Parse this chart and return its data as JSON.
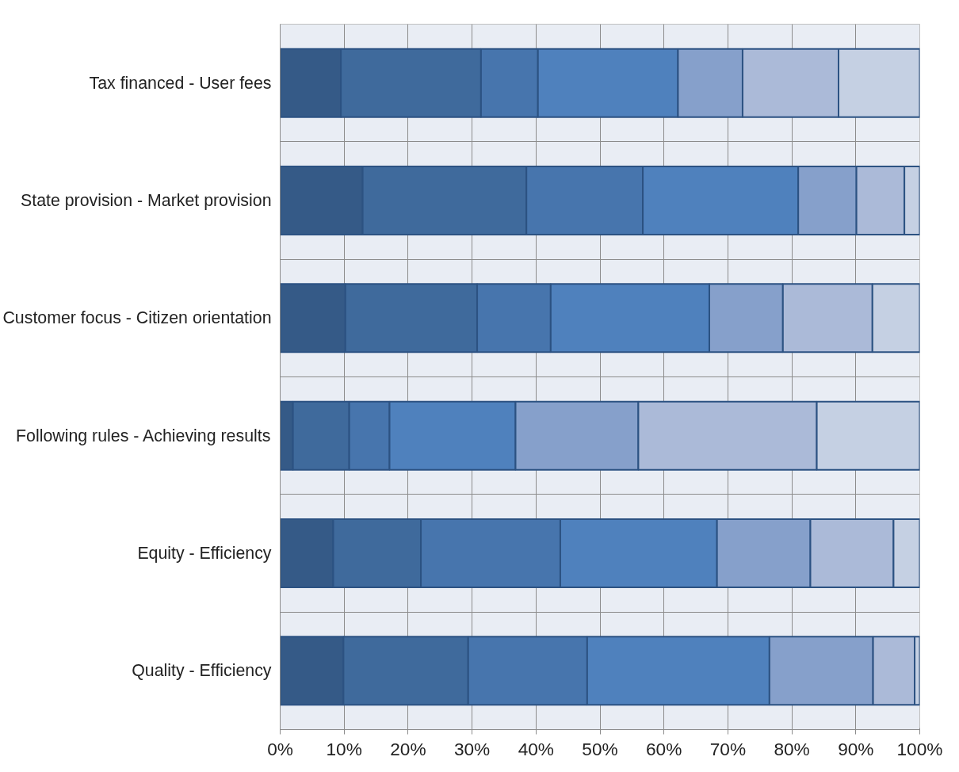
{
  "chart_data": {
    "type": "bar",
    "orientation": "horizontal",
    "stacked": true,
    "categories": [
      "Tax financed - User fees",
      "State provision - Market provision",
      "Customer focus - Citizen orientation",
      "Following rules - Achieving results",
      "Equity - Efficiency",
      "Quality - Efficiency"
    ],
    "series": [
      {
        "color": "#355a87",
        "values": [
          9.5,
          12.9,
          10.2,
          2.0,
          8.3,
          9.9
        ]
      },
      {
        "color": "#3f6a9c",
        "values": [
          21.9,
          25.6,
          20.6,
          8.8,
          13.7,
          19.5
        ]
      },
      {
        "color": "#4775ad",
        "values": [
          8.9,
          18.2,
          11.5,
          6.3,
          21.8,
          18.6
        ]
      },
      {
        "color": "#4f81bd",
        "values": [
          21.9,
          24.3,
          24.8,
          19.7,
          24.5,
          28.5
        ]
      },
      {
        "color": "#86a0cb",
        "values": [
          10.1,
          9.1,
          11.5,
          19.2,
          14.6,
          16.2
        ]
      },
      {
        "color": "#abbad8",
        "values": [
          15.0,
          7.5,
          14.0,
          27.9,
          13.0,
          6.5
        ]
      },
      {
        "color": "#c5d0e3",
        "values": [
          12.7,
          2.4,
          7.4,
          16.1,
          4.1,
          0.8
        ]
      }
    ],
    "xlim": [
      0,
      100
    ],
    "xticks": [
      {
        "value": 0,
        "label": "0%"
      },
      {
        "value": 10,
        "label": "10%"
      },
      {
        "value": 20,
        "label": "20%"
      },
      {
        "value": 30,
        "label": "30%"
      },
      {
        "value": 40,
        "label": "40%"
      },
      {
        "value": 50,
        "label": "50%"
      },
      {
        "value": 60,
        "label": "60%"
      },
      {
        "value": 70,
        "label": "70%"
      },
      {
        "value": 80,
        "label": "80%"
      },
      {
        "value": 90,
        "label": "90%"
      },
      {
        "value": 100,
        "label": "100%"
      }
    ],
    "grid": true
  }
}
